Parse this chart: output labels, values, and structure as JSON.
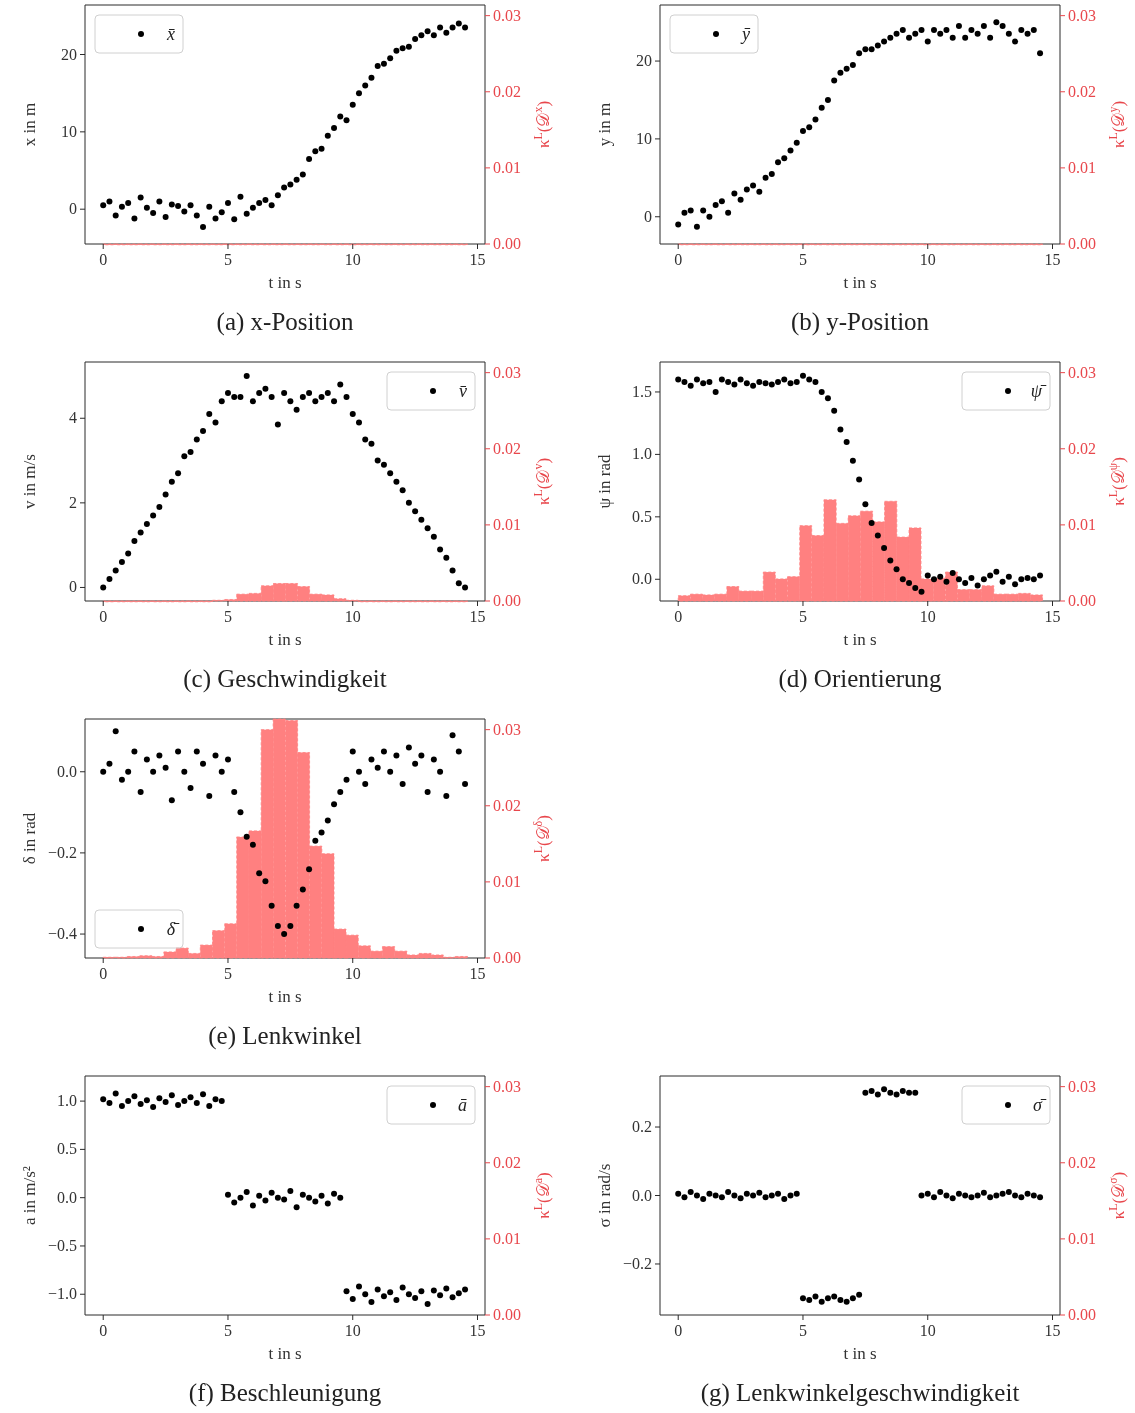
{
  "chart_data": [
    {
      "type": "scatter",
      "title": "(a) x-Position",
      "xlabel": "t in s",
      "ylabel": "x in m",
      "y2label": "κ$^{L}$(𝒟$^{x}$)",
      "legend": "top left",
      "xlim": [
        -0.73,
        15.3
      ],
      "xticks": [
        0,
        5,
        10,
        15
      ],
      "ylim": [
        -4.5,
        26.4
      ],
      "yticks": [
        0,
        10,
        20
      ],
      "y2lim": [
        0,
        0.0314
      ],
      "y2ticks": [
        {
          "value": 0,
          "label": "0.00"
        },
        {
          "value": 0.01,
          "label": "0.01"
        },
        {
          "value": 0.02,
          "label": "0.02"
        },
        {
          "value": 0.03,
          "label": "0.03"
        }
      ],
      "x": [
        0,
        0.25,
        0.5,
        0.75,
        1,
        1.25,
        1.5,
        1.75,
        2,
        2.25,
        2.5,
        2.75,
        3,
        3.25,
        3.5,
        3.75,
        4,
        4.25,
        4.5,
        4.75,
        5,
        5.25,
        5.5,
        5.75,
        6,
        6.25,
        6.5,
        6.75,
        7,
        7.25,
        7.5,
        7.75,
        8,
        8.25,
        8.5,
        8.75,
        9,
        9.25,
        9.5,
        9.75,
        10,
        10.25,
        10.5,
        10.75,
        11,
        11.25,
        11.5,
        11.75,
        12,
        12.25,
        12.5,
        12.75,
        13,
        13.25,
        13.5,
        13.75,
        14,
        14.25,
        14.5
      ],
      "series": [
        {
          "type": "histogram",
          "axis": "y2",
          "color": "#ff8080",
          "bins": [
            0,
            0.49,
            0.97,
            1.46,
            1.95,
            2.43,
            2.92,
            3.41,
            3.89,
            4.38,
            4.87,
            5.35,
            5.84,
            6.33,
            6.81,
            7.3,
            7.79,
            8.27,
            8.76,
            9.25,
            9.73,
            10.22,
            10.71,
            11.19,
            11.68,
            12.17,
            12.65,
            13.14,
            13.63,
            14.11,
            14.6
          ],
          "values": [
            0,
            0,
            0,
            0,
            0,
            0,
            0,
            0,
            0,
            0,
            0,
            0,
            0,
            0,
            0,
            0,
            0,
            0,
            0,
            0,
            0,
            0,
            0,
            0,
            0,
            0,
            0,
            0,
            0,
            0
          ]
        },
        {
          "type": "scatter",
          "name": "x̄",
          "color": "#000000",
          "marker": "circle",
          "values": [
            0.5,
            1.0,
            -0.8,
            0.3,
            0.8,
            -1.2,
            1.5,
            0.2,
            -0.5,
            1.0,
            -1.0,
            0.6,
            0.4,
            -0.3,
            0.5,
            -0.8,
            -2.3,
            0.3,
            -1.2,
            -0.4,
            0.8,
            -1.3,
            1.6,
            -0.6,
            0.2,
            0.8,
            1.2,
            0.5,
            1.8,
            2.8,
            3.2,
            3.8,
            4.5,
            6.5,
            7.5,
            7.8,
            9.5,
            10.5,
            12,
            11.5,
            13.5,
            15,
            16,
            17,
            18.5,
            18.8,
            19.5,
            20.5,
            20.8,
            21,
            22,
            22.5,
            23,
            22.5,
            23.5,
            22.8,
            23.5,
            24,
            23.5
          ]
        }
      ]
    },
    {
      "type": "scatter",
      "title": "(b) y-Position",
      "xlabel": "t in s",
      "ylabel": "y in m",
      "y2label": "κ$^{L}$(𝒟$^{y}$)",
      "legend": "top left",
      "xlim": [
        -0.73,
        15.3
      ],
      "xticks": [
        0,
        5,
        10,
        15
      ],
      "ylim": [
        -3.5,
        27.2
      ],
      "yticks": [
        0,
        10,
        20
      ],
      "y2lim": [
        0,
        0.0314
      ],
      "y2ticks": [
        {
          "value": 0,
          "label": "0.00"
        },
        {
          "value": 0.01,
          "label": "0.01"
        },
        {
          "value": 0.02,
          "label": "0.02"
        },
        {
          "value": 0.03,
          "label": "0.03"
        }
      ],
      "x": [
        0,
        0.25,
        0.5,
        0.75,
        1,
        1.25,
        1.5,
        1.75,
        2,
        2.25,
        2.5,
        2.75,
        3,
        3.25,
        3.5,
        3.75,
        4,
        4.25,
        4.5,
        4.75,
        5,
        5.25,
        5.5,
        5.75,
        6,
        6.25,
        6.5,
        6.75,
        7,
        7.25,
        7.5,
        7.75,
        8,
        8.25,
        8.5,
        8.75,
        9,
        9.25,
        9.5,
        9.75,
        10,
        10.25,
        10.5,
        10.75,
        11,
        11.25,
        11.5,
        11.75,
        12,
        12.25,
        12.5,
        12.75,
        13,
        13.25,
        13.5,
        13.75,
        14,
        14.25,
        14.5
      ],
      "series": [
        {
          "type": "histogram",
          "axis": "y2",
          "color": "#ff8080",
          "bins": [
            0,
            0.49,
            0.97,
            1.46,
            1.95,
            2.43,
            2.92,
            3.41,
            3.89,
            4.38,
            4.87,
            5.35,
            5.84,
            6.33,
            6.81,
            7.3,
            7.79,
            8.27,
            8.76,
            9.25,
            9.73,
            10.22,
            10.71,
            11.19,
            11.68,
            12.17,
            12.65,
            13.14,
            13.63,
            14.11,
            14.6
          ],
          "values": [
            0,
            0,
            0,
            0,
            0,
            0,
            0,
            0,
            0,
            0,
            0,
            0,
            0,
            0,
            0,
            0,
            0,
            0,
            0,
            0,
            0,
            0,
            0,
            0,
            0,
            0,
            0,
            0,
            0,
            0
          ]
        },
        {
          "type": "scatter",
          "name": "ȳ",
          "color": "#000000",
          "marker": "circle",
          "values": [
            -1,
            0.5,
            0.8,
            -1.3,
            0.8,
            0,
            1.5,
            2,
            0.5,
            3,
            2.2,
            3.5,
            4,
            3.2,
            5,
            5.5,
            7,
            7.5,
            8.5,
            9.5,
            11,
            11.5,
            12.5,
            14,
            15,
            17.5,
            18.5,
            19,
            19.5,
            21,
            21.5,
            21.5,
            22,
            22.5,
            23,
            23.5,
            24,
            23,
            23.5,
            24,
            22.5,
            24,
            23.5,
            24,
            23,
            24.5,
            23,
            24,
            23.5,
            24.5,
            23,
            25,
            24.5,
            23.5,
            22.5,
            24,
            23.5,
            24,
            21
          ]
        }
      ]
    },
    {
      "type": "scatter",
      "title": "(c) Geschwindigkeit",
      "xlabel": "t in s",
      "ylabel": "v in m/s",
      "y2label": "κ$^{L}$(𝒟$^{v}$)",
      "legend": "top right",
      "xlim": [
        -0.73,
        15.3
      ],
      "xticks": [
        0,
        5,
        10,
        15
      ],
      "ylim": [
        -0.32,
        5.33
      ],
      "yticks": [
        0,
        2,
        4
      ],
      "y2lim": [
        0,
        0.0314
      ],
      "y2ticks": [
        {
          "value": 0,
          "label": "0.00"
        },
        {
          "value": 0.01,
          "label": "0.01"
        },
        {
          "value": 0.02,
          "label": "0.02"
        },
        {
          "value": 0.03,
          "label": "0.03"
        }
      ],
      "x": [
        0,
        0.25,
        0.5,
        0.75,
        1,
        1.25,
        1.5,
        1.75,
        2,
        2.25,
        2.5,
        2.75,
        3,
        3.25,
        3.5,
        3.75,
        4,
        4.25,
        4.5,
        4.75,
        5,
        5.25,
        5.5,
        5.75,
        6,
        6.25,
        6.5,
        6.75,
        7,
        7.25,
        7.5,
        7.75,
        8,
        8.25,
        8.5,
        8.75,
        9,
        9.25,
        9.5,
        9.75,
        10,
        10.25,
        10.5,
        10.75,
        11,
        11.25,
        11.5,
        11.75,
        12,
        12.25,
        12.5,
        12.75,
        13,
        13.25,
        13.5,
        13.75,
        14,
        14.25,
        14.5
      ],
      "series": [
        {
          "type": "histogram",
          "axis": "y2",
          "color": "#ff8080",
          "bins": [
            0,
            0.49,
            0.97,
            1.46,
            1.95,
            2.43,
            2.92,
            3.41,
            3.89,
            4.38,
            4.87,
            5.35,
            5.84,
            6.33,
            6.81,
            7.3,
            7.79,
            8.27,
            8.76,
            9.25,
            9.73,
            10.22,
            10.71,
            11.19,
            11.68,
            12.17,
            12.65,
            13.14,
            13.63,
            14.11,
            14.6
          ],
          "values": [
            0,
            0,
            0,
            0,
            0,
            0,
            0,
            0,
            0,
            0.0001,
            0.0002,
            0.0009,
            0.001,
            0.002,
            0.0023,
            0.0023,
            0.0019,
            0.0009,
            0.0008,
            0.0003,
            0.0001,
            0,
            0,
            0,
            0,
            0,
            0,
            0,
            0,
            0
          ]
        },
        {
          "type": "scatter",
          "name": "v̄",
          "color": "#000000",
          "marker": "circle",
          "values": [
            0,
            0.2,
            0.4,
            0.6,
            0.8,
            1.1,
            1.3,
            1.5,
            1.7,
            1.9,
            2.2,
            2.5,
            2.7,
            3.1,
            3.2,
            3.5,
            3.7,
            4.1,
            3.9,
            4.4,
            4.6,
            4.5,
            4.5,
            5.0,
            4.4,
            4.6,
            4.7,
            4.5,
            3.85,
            4.6,
            4.4,
            4.2,
            4.5,
            4.6,
            4.4,
            4.5,
            4.6,
            4.4,
            4.8,
            4.5,
            4.1,
            3.9,
            3.5,
            3.4,
            3.0,
            2.9,
            2.7,
            2.5,
            2.3,
            2.0,
            1.8,
            1.6,
            1.4,
            1.2,
            0.9,
            0.7,
            0.4,
            0.1,
            0
          ]
        }
      ]
    },
    {
      "type": "scatter",
      "title": "(d) Orientierung",
      "xlabel": "t in s",
      "ylabel": "ψ in rad",
      "y2label": "κ$^{L}$(𝒟$^{ψ}$)",
      "legend": "top right",
      "xlim": [
        -0.73,
        15.3
      ],
      "xticks": [
        0,
        5,
        10,
        15
      ],
      "ylim": [
        -0.174,
        1.74
      ],
      "yticks": [
        {
          "value": 0,
          "label": "0.0"
        },
        {
          "value": 0.5,
          "label": "0.5"
        },
        {
          "value": 1,
          "label": "1.0"
        },
        {
          "value": 1.5,
          "label": "1.5"
        }
      ],
      "y2lim": [
        0,
        0.0314
      ],
      "y2ticks": [
        {
          "value": 0,
          "label": "0.00"
        },
        {
          "value": 0.01,
          "label": "0.01"
        },
        {
          "value": 0.02,
          "label": "0.02"
        },
        {
          "value": 0.03,
          "label": "0.03"
        }
      ],
      "x": [
        0,
        0.25,
        0.5,
        0.75,
        1,
        1.25,
        1.5,
        1.75,
        2,
        2.25,
        2.5,
        2.75,
        3,
        3.25,
        3.5,
        3.75,
        4,
        4.25,
        4.5,
        4.75,
        5,
        5.25,
        5.5,
        5.75,
        6,
        6.25,
        6.5,
        6.75,
        7,
        7.25,
        7.5,
        7.75,
        8,
        8.25,
        8.5,
        8.75,
        9,
        9.25,
        9.5,
        9.75,
        10,
        10.25,
        10.5,
        10.75,
        11,
        11.25,
        11.5,
        11.75,
        12,
        12.25,
        12.5,
        12.75,
        13,
        13.25,
        13.5,
        13.75,
        14,
        14.25,
        14.5
      ],
      "series": [
        {
          "type": "histogram",
          "axis": "y2",
          "color": "#ff8080",
          "bins": [
            0,
            0.49,
            0.97,
            1.46,
            1.95,
            2.43,
            2.92,
            3.41,
            3.89,
            4.38,
            4.87,
            5.35,
            5.84,
            6.33,
            6.81,
            7.3,
            7.79,
            8.27,
            8.76,
            9.25,
            9.73,
            10.22,
            10.71,
            11.19,
            11.68,
            12.17,
            12.65,
            13.14,
            13.63,
            14.11,
            14.6
          ],
          "values": [
            0.0007,
            0.0009,
            0.0008,
            0.0009,
            0.0019,
            0.0013,
            0.0013,
            0.0038,
            0.0029,
            0.0032,
            0.0099,
            0.0086,
            0.0133,
            0.0102,
            0.0112,
            0.0118,
            0.0104,
            0.0131,
            0.0084,
            0.0096,
            0.0029,
            0.003,
            0.0038,
            0.0015,
            0.0015,
            0.002,
            0.0009,
            0.0009,
            0.001,
            0.0008
          ]
        },
        {
          "type": "scatter",
          "name": "ψ̄",
          "color": "#000000",
          "marker": "circle",
          "values": [
            1.6,
            1.58,
            1.55,
            1.6,
            1.57,
            1.58,
            1.5,
            1.6,
            1.58,
            1.56,
            1.6,
            1.57,
            1.55,
            1.58,
            1.57,
            1.56,
            1.58,
            1.6,
            1.57,
            1.58,
            1.63,
            1.6,
            1.58,
            1.5,
            1.45,
            1.35,
            1.2,
            1.1,
            0.95,
            0.8,
            0.6,
            0.45,
            0.35,
            0.25,
            0.15,
            0.08,
            0.0,
            -0.03,
            -0.07,
            -0.1,
            0.03,
            0.0,
            0.02,
            -0.02,
            0.05,
            0.0,
            -0.03,
            0.01,
            -0.05,
            0.0,
            0.03,
            0.06,
            -0.02,
            0.02,
            -0.04,
            0.0,
            0.01,
            0.0,
            0.03
          ]
        }
      ]
    },
    {
      "type": "scatter",
      "title": "(e) Lenkwinkel",
      "xlabel": "t in s",
      "ylabel": "δ in rad",
      "y2label": "κ$^{L}$(𝒟$^{δ}$)",
      "legend": "bottom left",
      "xlim": [
        -0.73,
        15.3
      ],
      "xticks": [
        0,
        5,
        10,
        15
      ],
      "ylim": [
        -0.459,
        0.13
      ],
      "yticks": [
        {
          "value": -0.4,
          "label": "−0.4"
        },
        {
          "value": -0.2,
          "label": "−0.2"
        },
        {
          "value": 0,
          "label": "0.0"
        }
      ],
      "y2lim": [
        0,
        0.0314
      ],
      "y2ticks": [
        {
          "value": 0,
          "label": "0.00"
        },
        {
          "value": 0.01,
          "label": "0.01"
        },
        {
          "value": 0.02,
          "label": "0.02"
        },
        {
          "value": 0.03,
          "label": "0.03"
        }
      ],
      "x": [
        0,
        0.25,
        0.5,
        0.75,
        1,
        1.25,
        1.5,
        1.75,
        2,
        2.25,
        2.5,
        2.75,
        3,
        3.25,
        3.5,
        3.75,
        4,
        4.25,
        4.5,
        4.75,
        5,
        5.25,
        5.5,
        5.75,
        6,
        6.25,
        6.5,
        6.75,
        7,
        7.25,
        7.5,
        7.75,
        8,
        8.25,
        8.5,
        8.75,
        9,
        9.25,
        9.5,
        9.75,
        10,
        10.25,
        10.5,
        10.75,
        11,
        11.25,
        11.5,
        11.75,
        12,
        12.25,
        12.5,
        12.75,
        13,
        13.25,
        13.5,
        13.75,
        14,
        14.25,
        14.5
      ],
      "series": [
        {
          "type": "histogram",
          "axis": "y2",
          "color": "#ff8080",
          "bins": [
            0,
            0.49,
            0.97,
            1.46,
            1.95,
            2.43,
            2.92,
            3.41,
            3.89,
            4.38,
            4.87,
            5.35,
            5.84,
            6.33,
            6.81,
            7.3,
            7.79,
            8.27,
            8.76,
            9.25,
            9.73,
            10.22,
            10.71,
            11.19,
            11.68,
            12.17,
            12.65,
            13.14,
            13.63,
            14.11,
            14.6
          ],
          "values": [
            0.0001,
            0.0001,
            0.0002,
            0.0003,
            0.0002,
            0.0008,
            0.0013,
            0.0006,
            0.0017,
            0.0036,
            0.0045,
            0.0159,
            0.0167,
            0.03,
            0.0314,
            0.0312,
            0.027,
            0.0147,
            0.0137,
            0.0038,
            0.003,
            0.0016,
            0.0009,
            0.0015,
            0.0009,
            0.0004,
            0.0006,
            0.0004,
            0.0001,
            0.0002
          ]
        },
        {
          "type": "scatter",
          "name": "δ̄",
          "color": "#000000",
          "marker": "circle",
          "values": [
            0.0,
            0.02,
            0.1,
            -0.02,
            0.0,
            0.05,
            -0.05,
            0.03,
            0.0,
            0.04,
            0.01,
            -0.07,
            0.05,
            0.0,
            -0.04,
            0.05,
            0.02,
            -0.06,
            0.04,
            0.0,
            0.03,
            -0.05,
            -0.1,
            -0.16,
            -0.18,
            -0.25,
            -0.27,
            -0.33,
            -0.38,
            -0.4,
            -0.38,
            -0.33,
            -0.29,
            -0.24,
            -0.17,
            -0.15,
            -0.12,
            -0.08,
            -0.05,
            -0.02,
            0.05,
            0.0,
            -0.03,
            0.03,
            0.01,
            0.05,
            0.0,
            0.04,
            -0.03,
            0.06,
            0.02,
            0.04,
            -0.05,
            0.03,
            0.0,
            -0.06,
            0.09,
            0.05,
            -0.03
          ]
        }
      ]
    },
    {
      "type": "scatter",
      "title": "(f) Beschleunigung",
      "xlabel": "t in s",
      "ylabel": "a in m/s²",
      "y2label": "κ$^{L}$(𝒟$^{a}$)",
      "legend": "top right",
      "xlim": [
        -0.73,
        15.3
      ],
      "xticks": [
        0,
        5,
        10,
        15
      ],
      "ylim": [
        -1.215,
        1.26
      ],
      "yticks": [
        {
          "value": -1,
          "label": "−1.0"
        },
        {
          "value": -0.5,
          "label": "−0.5"
        },
        {
          "value": 0,
          "label": "0.0"
        },
        {
          "value": 0.5,
          "label": "0.5"
        },
        {
          "value": 1,
          "label": "1.0"
        }
      ],
      "y2lim": [
        0,
        0.0314
      ],
      "y2ticks": [
        {
          "value": 0,
          "label": "0.00"
        },
        {
          "value": 0.01,
          "label": "0.01"
        },
        {
          "value": 0.02,
          "label": "0.02"
        },
        {
          "value": 0.03,
          "label": "0.03"
        }
      ],
      "x": [
        0,
        0.25,
        0.5,
        0.75,
        1,
        1.25,
        1.5,
        1.75,
        2,
        2.25,
        2.5,
        2.75,
        3,
        3.25,
        3.5,
        3.75,
        4,
        4.25,
        4.5,
        4.75,
        5,
        5.25,
        5.5,
        5.75,
        6,
        6.25,
        6.5,
        6.75,
        7,
        7.25,
        7.5,
        7.75,
        8,
        8.25,
        8.5,
        8.75,
        9,
        9.25,
        9.5,
        9.75,
        10,
        10.25,
        10.5,
        10.75,
        11,
        11.25,
        11.5,
        11.75,
        12,
        12.25,
        12.5,
        12.75,
        13,
        13.25,
        13.5,
        13.75,
        14,
        14.25,
        14.5
      ],
      "series": [
        {
          "type": "scatter",
          "name": "ā",
          "color": "#000000",
          "marker": "circle",
          "values": [
            1.02,
            0.98,
            1.08,
            0.95,
            1.0,
            1.05,
            0.97,
            1.01,
            0.94,
            1.03,
            0.99,
            1.06,
            0.96,
            1.0,
            1.04,
            0.98,
            1.07,
            0.95,
            1.02,
            1.0,
            0.03,
            -0.05,
            0.0,
            0.06,
            -0.08,
            0.02,
            -0.03,
            0.05,
            0.0,
            -0.02,
            0.07,
            -0.1,
            0.03,
            0.0,
            -0.04,
            0.02,
            -0.06,
            0.04,
            0.0,
            -0.97,
            -1.05,
            -0.92,
            -1.0,
            -1.08,
            -0.95,
            -1.02,
            -0.98,
            -1.06,
            -0.93,
            -1.0,
            -1.04,
            -0.97,
            -1.1,
            -0.96,
            -1.01,
            -0.94,
            -1.03,
            -0.99,
            -0.95
          ]
        }
      ]
    },
    {
      "type": "scatter",
      "title": "(g) Lenkwinkelgeschwindigkeit",
      "xlabel": "t in s",
      "ylabel": "σ in rad/s",
      "y2label": "κ$^{L}$(𝒟$^{σ}$)",
      "legend": "top right",
      "xlim": [
        -0.73,
        15.3
      ],
      "xticks": [
        0,
        5,
        10,
        15
      ],
      "ylim": [
        -0.349,
        0.349
      ],
      "yticks": [
        {
          "value": -0.2,
          "label": "−0.2"
        },
        {
          "value": 0,
          "label": "0.0"
        },
        {
          "value": 0.2,
          "label": "0.2"
        }
      ],
      "y2lim": [
        0,
        0.0314
      ],
      "y2ticks": [
        {
          "value": 0,
          "label": "0.00"
        },
        {
          "value": 0.01,
          "label": "0.01"
        },
        {
          "value": 0.02,
          "label": "0.02"
        },
        {
          "value": 0.03,
          "label": "0.03"
        }
      ],
      "x": [
        0,
        0.25,
        0.5,
        0.75,
        1,
        1.25,
        1.5,
        1.75,
        2,
        2.25,
        2.5,
        2.75,
        3,
        3.25,
        3.5,
        3.75,
        4,
        4.25,
        4.5,
        4.75,
        5,
        5.25,
        5.5,
        5.75,
        6,
        6.25,
        6.5,
        6.75,
        7,
        7.25,
        7.5,
        7.75,
        8,
        8.25,
        8.5,
        8.75,
        9,
        9.25,
        9.5,
        9.75,
        10,
        10.25,
        10.5,
        10.75,
        11,
        11.25,
        11.5,
        11.75,
        12,
        12.25,
        12.5,
        12.75,
        13,
        13.25,
        13.5,
        13.75,
        14,
        14.25,
        14.5
      ],
      "series": [
        {
          "type": "scatter",
          "name": "σ̄",
          "color": "#000000",
          "marker": "circle",
          "values": [
            0.005,
            -0.005,
            0.01,
            0.0,
            -0.01,
            0.005,
            0.0,
            -0.005,
            0.01,
            0.0,
            -0.008,
            0.005,
            0.0,
            0.008,
            -0.005,
            0.0,
            0.005,
            -0.01,
            0.0,
            0.005,
            -0.3,
            -0.305,
            -0.295,
            -0.31,
            -0.3,
            -0.295,
            -0.305,
            -0.31,
            -0.3,
            -0.29,
            0.3,
            0.305,
            0.295,
            0.31,
            0.3,
            0.295,
            0.305,
            0.3,
            0.3,
            0.0,
            0.005,
            -0.005,
            0.01,
            0.0,
            -0.008,
            0.005,
            0.0,
            -0.005,
            0.0,
            0.008,
            -0.005,
            0.0,
            0.005,
            0.01,
            0.0,
            -0.005,
            0.005,
            0.0,
            -0.005
          ]
        }
      ]
    }
  ]
}
